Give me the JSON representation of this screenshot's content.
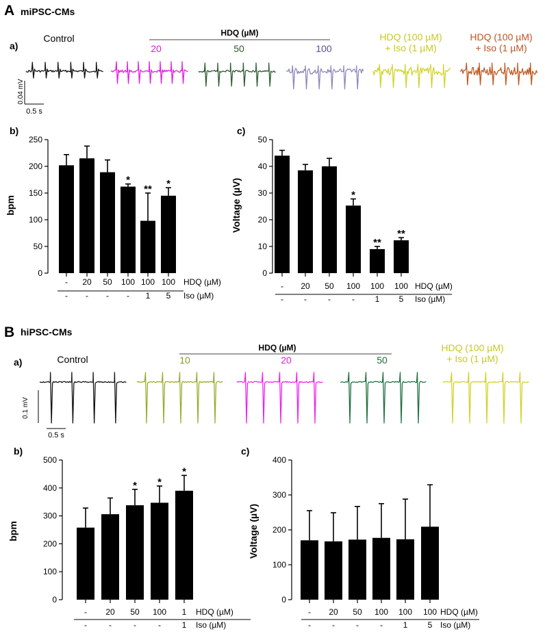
{
  "panel_A": {
    "letter": "A",
    "title": "miPSC-CMs",
    "traces_label": "a)",
    "group_header": "HDQ (µM)",
    "trace_labels": [
      {
        "text": "Control",
        "color": "#000000"
      },
      {
        "text": "20",
        "color": "#d41ed4"
      },
      {
        "text": "50",
        "color": "#2e5a2e"
      },
      {
        "text": "100",
        "color": "#5a4fa0"
      },
      {
        "text": "HDQ (100 µM)",
        "text2": "+ Iso (1 µM)",
        "color": "#c8c820"
      },
      {
        "text": "HDQ (100 µM)",
        "text2": "+ Iso (1 µM)",
        "color": "#c0531e"
      }
    ],
    "trace_colors": [
      "#111111",
      "#e020e0",
      "#2f5a32",
      "#8f86bb",
      "#d2d22a",
      "#c0581f"
    ],
    "scale_voltage": "0.04 mV",
    "scale_time": "0.5 s"
  },
  "panel_B": {
    "letter": "B",
    "title": "hiPSC-CMs",
    "traces_label": "a)",
    "group_header": "HDQ (µM)",
    "trace_labels": [
      {
        "text": "Control",
        "color": "#000000"
      },
      {
        "text": "10",
        "color": "#8a9a2a"
      },
      {
        "text": "20",
        "color": "#e020e0"
      },
      {
        "text": "50",
        "color": "#1f6b3a"
      },
      {
        "text": "HDQ (100 µM)",
        "text2": "+ Iso (1 µM)",
        "color": "#c8c820"
      }
    ],
    "trace_colors": [
      "#111111",
      "#9aac2e",
      "#ee22ee",
      "#1f7040",
      "#d2d22a"
    ],
    "scale_voltage": "0.1 mV",
    "scale_time": "0.5 s"
  },
  "chart_data": [
    {
      "id": "A_b",
      "type": "bar",
      "panel_label": "b)",
      "ylabel": "bpm",
      "ylim": [
        0,
        250
      ],
      "yticks": [
        0,
        50,
        100,
        150,
        200,
        250
      ],
      "values": [
        202,
        215,
        189,
        162,
        98,
        145
      ],
      "errors": [
        20,
        23,
        23,
        5,
        52,
        15
      ],
      "significance": [
        "",
        "",
        "",
        "*",
        "**",
        "*"
      ],
      "row1_label": "HDQ (µM)",
      "row1": [
        "-",
        "20",
        "50",
        "100",
        "100",
        "100"
      ],
      "row2_label": "Iso (µM)",
      "row2": [
        "-",
        "-",
        "-",
        "-",
        "1",
        "5"
      ]
    },
    {
      "id": "A_c",
      "type": "bar",
      "panel_label": "c)",
      "ylabel": "Voltage (µV)",
      "ylim": [
        0,
        50
      ],
      "yticks": [
        0,
        10,
        20,
        30,
        40,
        50
      ],
      "values": [
        44,
        38.5,
        40,
        25.3,
        9,
        12.3
      ],
      "errors": [
        2,
        2.2,
        3,
        2.5,
        1,
        1
      ],
      "significance": [
        "",
        "",
        "",
        "*",
        "**",
        "**"
      ],
      "row1_label": "HDQ (µM)",
      "row1": [
        "-",
        "20",
        "50",
        "100",
        "100",
        "100"
      ],
      "row2_label": "Iso (µM)",
      "row2": [
        "-",
        "-",
        "-",
        "-",
        "1",
        "5"
      ]
    },
    {
      "id": "B_b",
      "type": "bar",
      "panel_label": "b)",
      "ylabel": "bpm",
      "ylim": [
        0,
        500
      ],
      "yticks": [
        0,
        100,
        200,
        300,
        400,
        500
      ],
      "values": [
        258,
        306,
        338,
        347,
        390
      ],
      "errors": [
        70,
        58,
        57,
        60,
        55
      ],
      "significance": [
        "",
        "",
        "*",
        "*",
        "*"
      ],
      "row1_label": "HDQ (µM)",
      "row1": [
        "-",
        "20",
        "50",
        "100",
        "1"
      ],
      "row2_label": "Iso (µM)",
      "row2": [
        "-",
        "-",
        "-",
        "-",
        "1"
      ]
    },
    {
      "id": "B_c",
      "type": "bar",
      "panel_label": "c)",
      "ylabel": "Voltage (µV)",
      "ylim": [
        0,
        400
      ],
      "yticks": [
        0,
        100,
        200,
        300,
        400
      ],
      "values": [
        170,
        167,
        172,
        177,
        173,
        209
      ],
      "errors": [
        85,
        82,
        95,
        98,
        115,
        120
      ],
      "significance": [
        "",
        "",
        "",
        "",
        "",
        ""
      ],
      "row1_label": "HDQ (µM)",
      "row1": [
        "-",
        "20",
        "50",
        "100",
        "100",
        "100"
      ],
      "row2_label": "Iso (µM)",
      "row2": [
        "-",
        "-",
        "-",
        "-",
        "1",
        "5"
      ]
    }
  ]
}
